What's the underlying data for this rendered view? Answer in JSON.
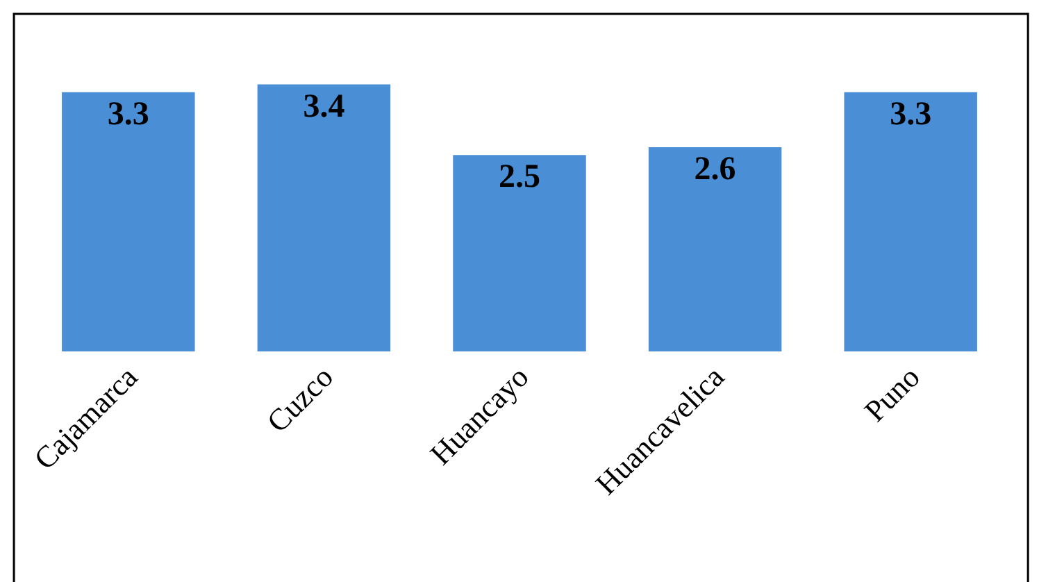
{
  "chart_data": {
    "type": "bar",
    "categories": [
      "Cajamarca",
      "Cuzco",
      "Huancayo",
      "Huancavelica",
      "Puno"
    ],
    "values": [
      3.3,
      3.4,
      2.5,
      2.6,
      3.3
    ],
    "color": "#4a8fd6",
    "data_labels": true
  }
}
